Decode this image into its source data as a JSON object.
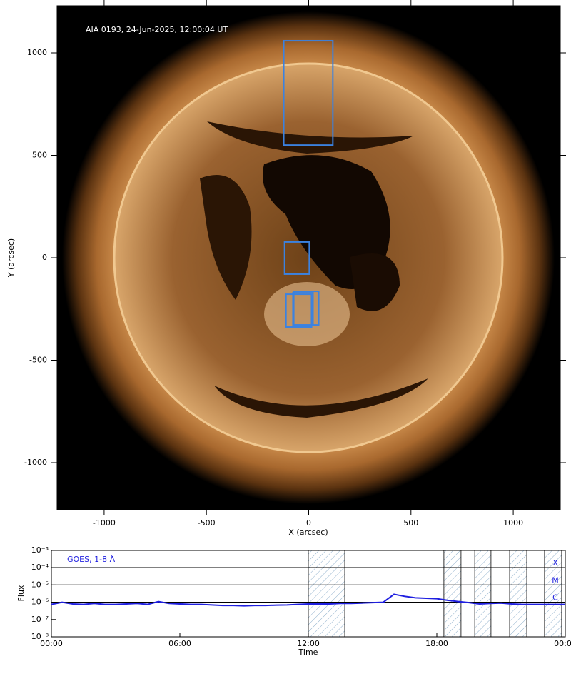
{
  "chart_data": [
    {
      "type": "image",
      "title": "AIA 0193, 24-Jun-2025, 12:00:04 UT",
      "x_label": "X (arcsec)",
      "y_label": "Y (arcsec)",
      "xlim": [
        -1230,
        1230
      ],
      "ylim": [
        -1230,
        1230
      ],
      "xticks": [
        -1000,
        -500,
        0,
        500,
        1000
      ],
      "yticks": [
        -1000,
        -500,
        0,
        500,
        1000
      ],
      "box_color": "#3b82e0",
      "boxes": [
        {
          "x": [
            -122,
            118
          ],
          "y": [
            550,
            1059
          ]
        },
        {
          "x": [
            -118,
            3
          ],
          "y": [
            -80,
            77
          ]
        },
        {
          "x": [
            -111,
            14
          ],
          "y": [
            -338,
            -178
          ]
        },
        {
          "x": [
            -73,
            49
          ],
          "y": [
            -328,
            -164
          ]
        },
        {
          "x": [
            -77,
            21
          ],
          "y": [
            -328,
            -171
          ]
        }
      ]
    },
    {
      "type": "line",
      "label": "GOES, 1-8 Å",
      "x_label": "Time",
      "y_label": "Flux",
      "log_scale": true,
      "xlim": [
        0,
        24
      ],
      "ylim": [
        1e-08,
        0.001
      ],
      "xticks": [
        {
          "value": 0,
          "label": "00:00"
        },
        {
          "value": 6,
          "label": "06:00"
        },
        {
          "value": 12,
          "label": "12:00"
        },
        {
          "value": 18,
          "label": "18:00"
        },
        {
          "value": 24,
          "label": "00:00"
        }
      ],
      "yticks": [
        {
          "value": 1e-08,
          "label": "10⁻⁸"
        },
        {
          "value": 1e-07,
          "label": "10⁻⁷"
        },
        {
          "value": 1e-06,
          "label": "10⁻⁶"
        },
        {
          "value": 1e-05,
          "label": "10⁻⁵"
        },
        {
          "value": 0.0001,
          "label": "10⁻⁴"
        },
        {
          "value": 0.001,
          "label": "10⁻³"
        }
      ],
      "flare_levels": [
        {
          "value": 0.0001,
          "label": "X"
        },
        {
          "value": 1e-05,
          "label": "M"
        },
        {
          "value": 1e-06,
          "label": "C"
        }
      ],
      "shaded": [
        [
          12,
          13.7
        ],
        [
          18.33,
          19.13
        ],
        [
          19.77,
          20.53
        ],
        [
          21.4,
          22.2
        ],
        [
          23.03,
          23.83
        ]
      ],
      "x": [
        0,
        0.5,
        1,
        1.5,
        2,
        2.5,
        3,
        3.5,
        4,
        4.5,
        5,
        5.5,
        6,
        6.5,
        7,
        7.5,
        8,
        8.5,
        9,
        9.5,
        10,
        10.5,
        11,
        11.5,
        12,
        12.5,
        13,
        13.5,
        14,
        14.5,
        15,
        15.5,
        16,
        16.5,
        17,
        17.5,
        18,
        18.5,
        19,
        19.5,
        20,
        20.5,
        21,
        21.5,
        22,
        22.5,
        23,
        23.5,
        24
      ],
      "series": [
        {
          "name": "GOES",
          "color": "#1f1fe0",
          "values": [
            7.5e-07,
            1e-06,
            8e-07,
            7.5e-07,
            8.5e-07,
            7.5e-07,
            7.5e-07,
            8e-07,
            8.5e-07,
            7.5e-07,
            1.1e-06,
            8.5e-07,
            8e-07,
            7.5e-07,
            7.5e-07,
            7e-07,
            6.5e-07,
            6.5e-07,
            6.2e-07,
            6.5e-07,
            6.5e-07,
            6.8e-07,
            7e-07,
            7.5e-07,
            8e-07,
            8e-07,
            8e-07,
            8.5e-07,
            8.5e-07,
            9e-07,
            9.5e-07,
            1e-06,
            2.9e-06,
            2.2e-06,
            1.8e-06,
            1.7e-06,
            1.6e-06,
            1.3e-06,
            1.1e-06,
            9.5e-07,
            8e-07,
            8.5e-07,
            9e-07,
            8e-07,
            7.5e-07,
            7.5e-07,
            7.5e-07,
            7.5e-07,
            7.5e-07
          ]
        }
      ]
    }
  ]
}
